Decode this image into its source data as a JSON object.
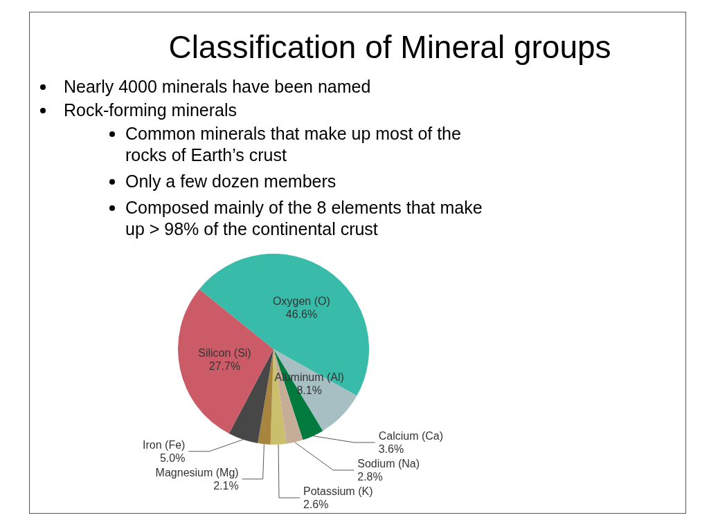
{
  "chart_data": {
    "type": "pie",
    "title": "Classification of Mineral groups",
    "annotations": [
      "Nearly 4000 minerals have been named",
      "Rock-forming minerals",
      "Common minerals that make up most of the rocks of Earth’s crust",
      "Only a few dozen members",
      "Composed mainly of the 8 elements that make up > 98% of the continental crust"
    ],
    "categories": [
      "Oxygen (O)",
      "Aluminum (Al)",
      "Calcium (Ca)",
      "Sodium (Na)",
      "Potassium (K)",
      "Magnesium (Mg)",
      "Iron (Fe)",
      "Silicon (Si)"
    ],
    "values": [
      46.6,
      8.1,
      3.6,
      2.8,
      2.6,
      2.1,
      5.0,
      27.7
    ],
    "value_labels": [
      "46.6%",
      "8.1%",
      "3.6%",
      "2.8%",
      "2.6%",
      "2.1%",
      "5.0%",
      "27.7%"
    ],
    "colors": [
      "#38bba8",
      "#a7bfc3",
      "#007a3d",
      "#c6ad98",
      "#c9bf6c",
      "#a8853e",
      "#474747",
      "#cc5b68"
    ]
  }
}
